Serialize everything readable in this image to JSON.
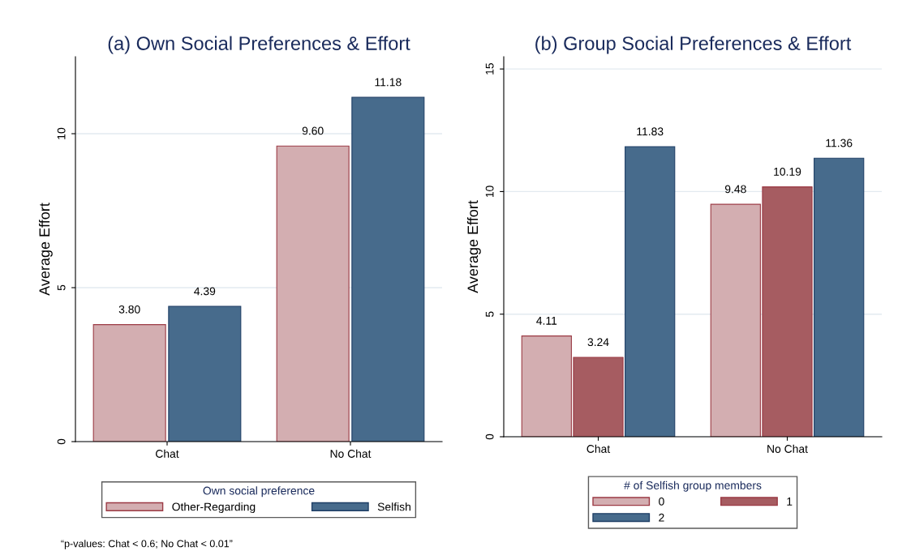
{
  "chart_data": [
    {
      "type": "bar",
      "title": "(a) Own Social Preferences & Effort",
      "ylabel": "Average Effort",
      "categories": [
        "Chat",
        "No Chat"
      ],
      "legend_title": "Own social preference",
      "legend": "bottom",
      "grid": "y",
      "data_labels": true,
      "ylim": [
        0,
        12.5
      ],
      "yticks": [
        0,
        5,
        10
      ],
      "series": [
        {
          "name": "Other-Regarding",
          "color": "#d3aeb1",
          "values": [
            3.8,
            9.6
          ],
          "value_labels": [
            "3.80",
            "9.60"
          ]
        },
        {
          "name": "Selfish",
          "color": "#476b8c",
          "values": [
            4.39,
            11.18
          ]
        }
      ],
      "annotations": [
        "“p-values: Chat < 0.6; No Chat < 0.01”"
      ]
    },
    {
      "type": "bar",
      "title": "(b) Group Social Preferences & Effort",
      "ylabel": "Average Effort",
      "categories": [
        "Chat",
        "No Chat"
      ],
      "legend_title": "# of Selfish group members",
      "legend": "bottom",
      "grid": "y",
      "data_labels": true,
      "ylim": [
        0,
        15.5
      ],
      "yticks": [
        0,
        5,
        10,
        15
      ],
      "series": [
        {
          "name": "0",
          "color": "#d3aeb1",
          "values": [
            4.11,
            9.48
          ]
        },
        {
          "name": "1",
          "color": "#a65c61",
          "values": [
            3.24,
            10.19
          ]
        },
        {
          "name": "2",
          "color": "#476b8c",
          "values": [
            11.83,
            11.36
          ]
        }
      ]
    }
  ]
}
